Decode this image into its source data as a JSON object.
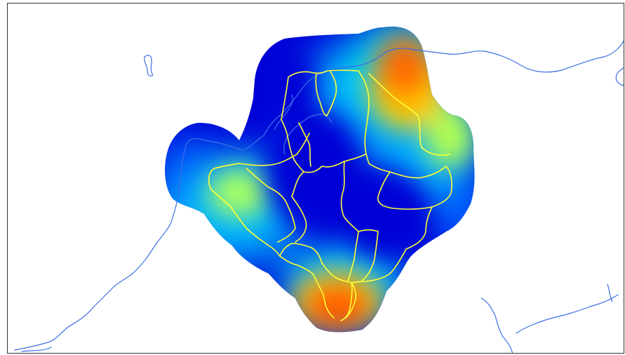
{
  "map": {
    "colors": {
      "background": "#ffffff",
      "frame": "#333333",
      "river": "#3d6fe6",
      "district_boundary": "#ffff33",
      "heatmap_scale": [
        "#0000d0",
        "#0048ff",
        "#00c8ff",
        "#a8ff58",
        "#ffd000",
        "#ff6a00",
        "#e82000"
      ]
    },
    "layers": [
      "heatmap-surface",
      "river-network",
      "district-boundaries"
    ],
    "hotspots": [
      {
        "label": "",
        "intensity": "high",
        "location": "north-east"
      },
      {
        "label": "",
        "intensity": "high",
        "location": "south"
      },
      {
        "label": "",
        "intensity": "medium",
        "location": "west"
      },
      {
        "label": "",
        "intensity": "medium",
        "location": "east"
      }
    ]
  }
}
